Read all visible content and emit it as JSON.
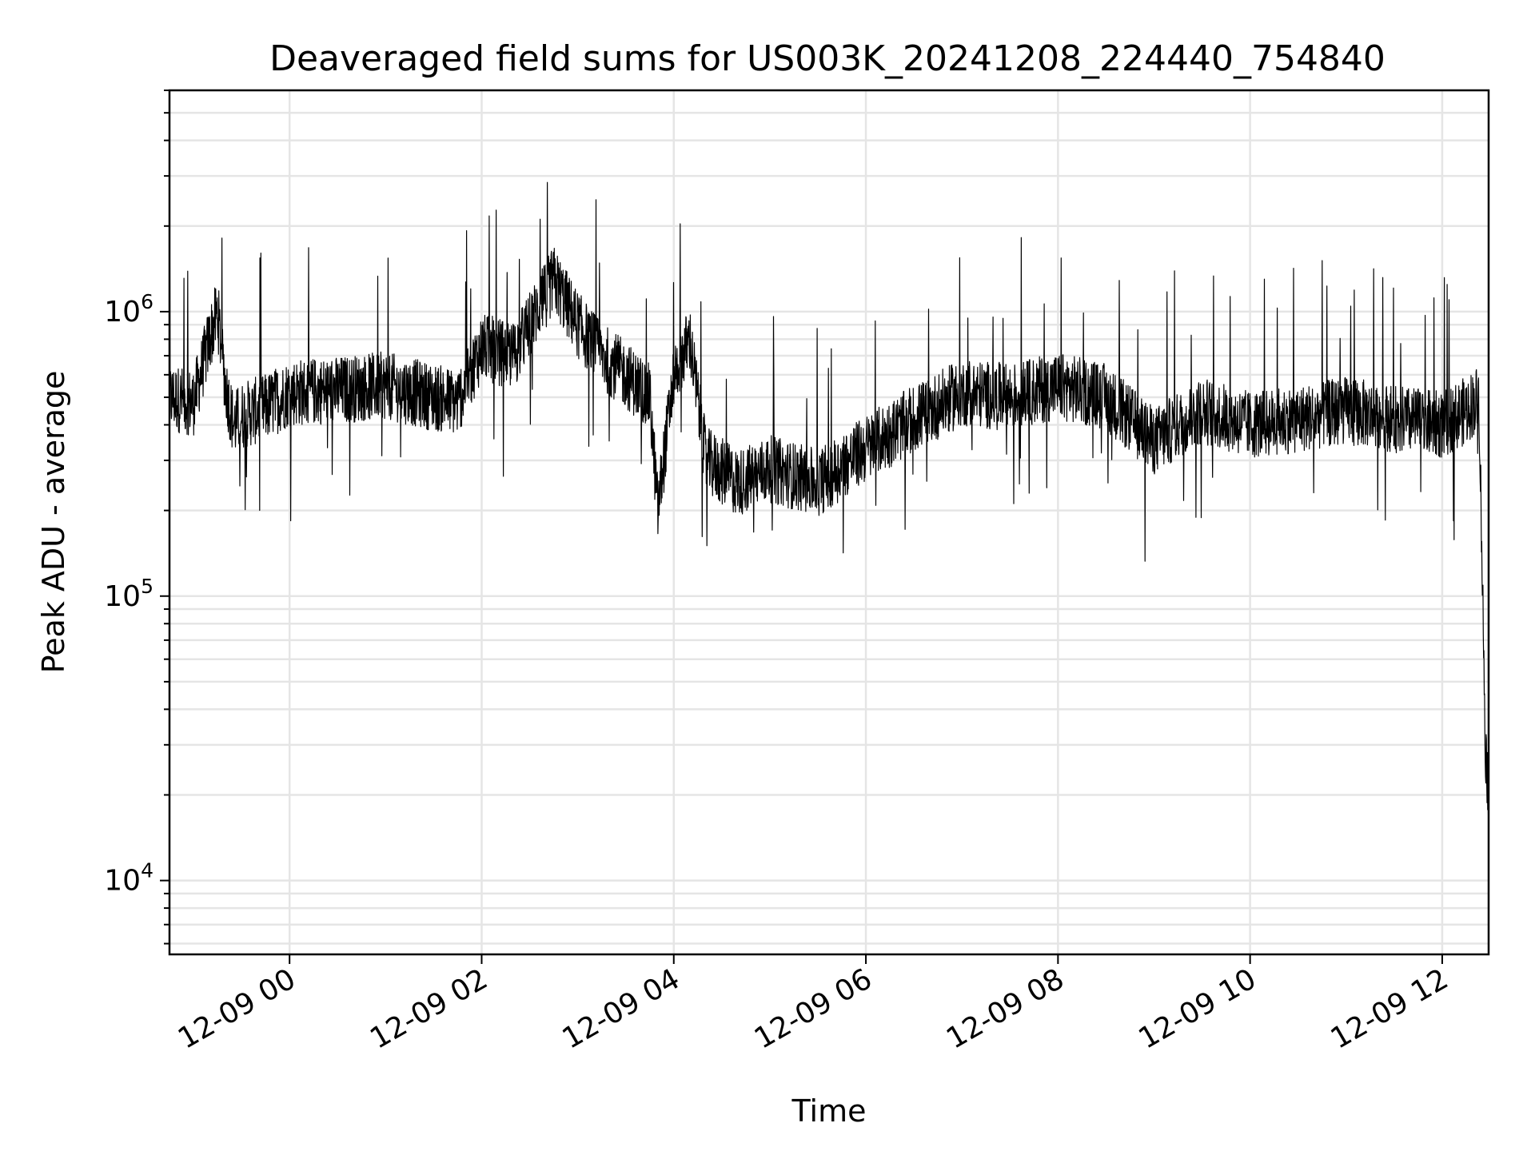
{
  "chart_data": {
    "type": "line",
    "title": "Deaveraged field sums for US003K_20241208_224440_754840",
    "xlabel": "Time",
    "ylabel": "Peak ADU - average",
    "yscale": "log",
    "ylim": [
      5500,
      6000000
    ],
    "xlim": [
      "2024-12-08 22:45",
      "2024-12-09 12:29"
    ],
    "grid": true,
    "line_color": "#000000",
    "grid_color": "#e5e5e5",
    "x_ticks": [
      {
        "label": "12-09 00",
        "time": "2024-12-09 00:00"
      },
      {
        "label": "12-09 02",
        "time": "2024-12-09 02:00"
      },
      {
        "label": "12-09 04",
        "time": "2024-12-09 04:00"
      },
      {
        "label": "12-09 06",
        "time": "2024-12-09 06:00"
      },
      {
        "label": "12-09 08",
        "time": "2024-12-09 08:00"
      },
      {
        "label": "12-09 10",
        "time": "2024-12-09 10:00"
      },
      {
        "label": "12-09 12",
        "time": "2024-12-09 12:00"
      }
    ],
    "y_ticks": [
      {
        "base": "10",
        "exp": "4",
        "value": 10000
      },
      {
        "base": "10",
        "exp": "5",
        "value": 100000
      },
      {
        "base": "10",
        "exp": "6",
        "value": 1000000
      }
    ],
    "series": [
      {
        "x": [
          "2024-12-08 22:45",
          "2024-12-08 23:00",
          "2024-12-08 23:10",
          "2024-12-08 23:15",
          "2024-12-08 23:20",
          "2024-12-08 23:25",
          "2024-12-08 23:30",
          "2024-12-08 23:45",
          "2024-12-09 00:00",
          "2024-12-09 00:30",
          "2024-12-09 01:00",
          "2024-12-09 01:30",
          "2024-12-09 01:45",
          "2024-12-09 02:00",
          "2024-12-09 02:20",
          "2024-12-09 02:30",
          "2024-12-09 02:45",
          "2024-12-09 03:00",
          "2024-12-09 03:15",
          "2024-12-09 03:30",
          "2024-12-09 03:45",
          "2024-12-09 03:50",
          "2024-12-09 04:00",
          "2024-12-09 04:10",
          "2024-12-09 04:20",
          "2024-12-09 04:40",
          "2024-12-09 05:00",
          "2024-12-09 05:30",
          "2024-12-09 06:00",
          "2024-12-09 06:30",
          "2024-12-09 07:00",
          "2024-12-09 07:30",
          "2024-12-09 08:00",
          "2024-12-09 08:30",
          "2024-12-09 09:00",
          "2024-12-09 09:30",
          "2024-12-09 10:00",
          "2024-12-09 10:30",
          "2024-12-09 11:00",
          "2024-12-09 11:30",
          "2024-12-09 12:00",
          "2024-12-09 12:15",
          "2024-12-09 12:23",
          "2024-12-09 12:27",
          "2024-12-09 12:29"
        ],
        "y": [
          500000,
          480000,
          800000,
          1000000,
          550000,
          400000,
          430000,
          460000,
          520000,
          530000,
          550000,
          500000,
          480000,
          750000,
          700000,
          900000,
          1300000,
          900000,
          700000,
          600000,
          500000,
          200000,
          600000,
          800000,
          300000,
          250000,
          280000,
          250000,
          330000,
          420000,
          520000,
          500000,
          550000,
          500000,
          350000,
          450000,
          400000,
          420000,
          450000,
          420000,
          400000,
          450000,
          500000,
          30000,
          20000
        ]
      }
    ]
  }
}
